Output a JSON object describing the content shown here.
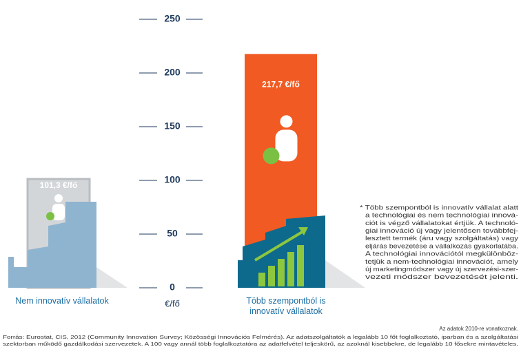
{
  "chart_data": {
    "type": "bar",
    "categories": [
      "Nem innovatív vállalatok",
      "Több szempontból is innovatív vállalatok"
    ],
    "values": [
      101.3,
      217.7
    ],
    "value_labels": [
      "101,3 €/fő",
      "217,7 €/fő"
    ],
    "colors": [
      "#d3d6d9",
      "#f15a22"
    ],
    "ylim": [
      0,
      250
    ],
    "yticks": [
      0,
      50,
      100,
      150,
      200,
      250
    ],
    "y_unit": "€/fő",
    "footnote": [
      "* Több szempontból is innovatív vállalat alatt",
      "a technológiai és nem technológiai innová-",
      "ciót is végző vállalatokat értjük. A technoló-",
      "giai innováció új vagy jelentősen továbbfej-",
      "lesztett termék (áru vagy szolgáltatás) vagy",
      "eljárás bevezetése a vállalkozás gyakorlatába.",
      "A technológiai innovációtól megkülönböz-",
      "tetjük a nem-technológiai innovációt, amely",
      "új marketingmódszer vagy új szervezési-szer-",
      "vezeti módszer bevezetését jelenti."
    ],
    "data_note": "Az adatok 2010-re vonatkoznak.",
    "source": [
      "Forrás: Eurostat, CIS, 2012 (Community Innovation Survey; Közösségi Innovációs Felmérés). Az adatszolgáltatók a legalább 10 főt foglalkoztató, iparban és a szolgáltatási",
      "szektorban működő gazdálkodási szervezetek. A 100 vagy annál több foglalkoztatóra az adatfelvétel teljeskörű, az azoknál kisebbekre, de legalább 10 fősekre mintavételes."
    ]
  }
}
